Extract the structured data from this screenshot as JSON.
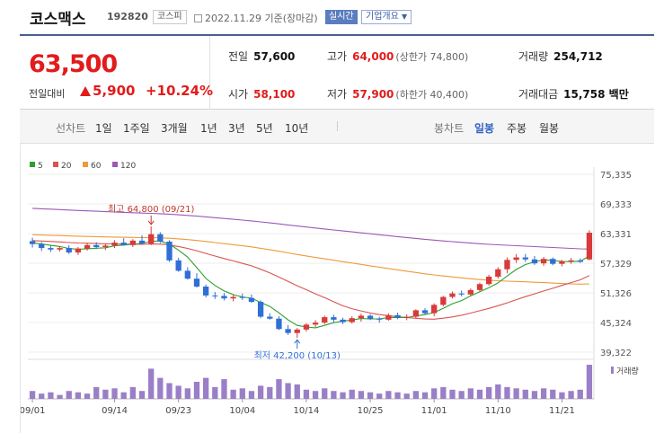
{
  "header": {
    "name": "코스맥스",
    "code": "192820",
    "market": "코스피",
    "date": "2022.11.29 기준(장마감)",
    "live": "실시간",
    "info": "기업개요"
  },
  "quote": {
    "price": "63,500",
    "change_label": "전일대비",
    "change": "5,900",
    "rate": "+10.24%"
  },
  "stats": {
    "prev_label": "전일",
    "prev": "57,600",
    "high_label": "고가",
    "high": "64,000",
    "high_limit": "(상한가 74,800)",
    "volume_label": "거래량",
    "volume": "254,712",
    "open_label": "시가",
    "open": "58,100",
    "low_label": "저가",
    "low": "57,900",
    "low_limit": "(하한가 40,400)",
    "amount_label": "거래대금",
    "amount": "15,758 백만"
  },
  "tabs": {
    "line_label": "선차트",
    "line_items": [
      "1일",
      "1주일",
      "3개월",
      "1년",
      "3년",
      "5년",
      "10년"
    ],
    "candle_label": "봉차트",
    "candle_items": [
      "일봉",
      "주봉",
      "월봉"
    ],
    "active_candle": "일봉"
  },
  "chart_data": {
    "type": "candlestick",
    "ma_legend": [
      {
        "name": "5",
        "color": "#2ca02c"
      },
      {
        "name": "20",
        "color": "#d9534f"
      },
      {
        "name": "60",
        "color": "#ee9a3a"
      },
      {
        "name": "120",
        "color": "#9b59b6"
      }
    ],
    "y_ticks": [
      "75,335",
      "69,333",
      "63,331",
      "57,329",
      "51,326",
      "45,324",
      "39,322"
    ],
    "y_range": [
      39322,
      75335
    ],
    "x_ticks": [
      "09/01",
      "09/14",
      "09/23",
      "10/04",
      "10/14",
      "10/25",
      "11/01",
      "11/10",
      "11/21"
    ],
    "x_tick_index": [
      0,
      9,
      16,
      23,
      30,
      37,
      44,
      51,
      58
    ],
    "volume_label": "거래량",
    "annot_high": "최고 64,800 (09/21)",
    "annot_low": "최저 42,200 (10/13)",
    "high_index": 13,
    "low_index": 29,
    "candles": [
      [
        61800,
        62500,
        60500,
        61200
      ],
      [
        61200,
        61600,
        59800,
        60400
      ],
      [
        60400,
        60900,
        59600,
        60100
      ],
      [
        60100,
        60800,
        59700,
        60400
      ],
      [
        60400,
        61000,
        59200,
        59500
      ],
      [
        59500,
        60600,
        59000,
        60300
      ],
      [
        60300,
        61400,
        59900,
        61000
      ],
      [
        61000,
        61600,
        60200,
        60600
      ],
      [
        60600,
        61200,
        60000,
        60900
      ],
      [
        60900,
        62000,
        60400,
        61500
      ],
      [
        61500,
        62400,
        60900,
        61000
      ],
      [
        61000,
        62200,
        60600,
        61900
      ],
      [
        61900,
        63000,
        61300,
        61300
      ],
      [
        61300,
        64800,
        61000,
        63200
      ],
      [
        63200,
        63600,
        61400,
        61700
      ],
      [
        61700,
        62000,
        57600,
        57900
      ],
      [
        57900,
        58400,
        55600,
        55800
      ],
      [
        55800,
        56500,
        54000,
        54200
      ],
      [
        54200,
        55300,
        52400,
        52600
      ],
      [
        52600,
        53000,
        50400,
        50800
      ],
      [
        50800,
        51500,
        50100,
        50700
      ],
      [
        50700,
        51300,
        49800,
        50200
      ],
      [
        50200,
        50900,
        49600,
        50500
      ],
      [
        50500,
        51200,
        49900,
        50300
      ],
      [
        50300,
        51000,
        49300,
        49500
      ],
      [
        49500,
        49800,
        46200,
        46500
      ],
      [
        46500,
        47200,
        45900,
        46100
      ],
      [
        46100,
        46600,
        43800,
        44000
      ],
      [
        44000,
        44800,
        42800,
        43200
      ],
      [
        43200,
        44200,
        42200,
        43900
      ],
      [
        43900,
        45200,
        43500,
        44900
      ],
      [
        44900,
        45800,
        44400,
        45300
      ],
      [
        45300,
        46700,
        45000,
        46400
      ],
      [
        46400,
        46900,
        45400,
        45900
      ],
      [
        45900,
        46300,
        45000,
        45400
      ],
      [
        45400,
        46600,
        45100,
        46200
      ],
      [
        46200,
        47100,
        45500,
        46700
      ],
      [
        46700,
        47000,
        45800,
        46100
      ],
      [
        46100,
        46500,
        45300,
        45900
      ],
      [
        45900,
        47200,
        45700,
        46800
      ],
      [
        46800,
        47300,
        46000,
        46300
      ],
      [
        46300,
        47000,
        45800,
        46500
      ],
      [
        46500,
        48000,
        46200,
        47800
      ],
      [
        47800,
        48200,
        46900,
        47200
      ],
      [
        47200,
        49200,
        46600,
        48900
      ],
      [
        48900,
        50700,
        48600,
        50500
      ],
      [
        50500,
        51600,
        50200,
        51200
      ],
      [
        51200,
        51800,
        50600,
        51000
      ],
      [
        51000,
        52200,
        50700,
        51900
      ],
      [
        51900,
        53400,
        51600,
        53100
      ],
      [
        53100,
        55000,
        52800,
        54600
      ],
      [
        54600,
        56500,
        54200,
        56100
      ],
      [
        56100,
        58500,
        55300,
        58000
      ],
      [
        58000,
        59200,
        57400,
        58500
      ],
      [
        58500,
        59200,
        57600,
        58100
      ],
      [
        58100,
        58800,
        57000,
        57300
      ],
      [
        57300,
        58600,
        56800,
        58200
      ],
      [
        58200,
        58500,
        56900,
        57200
      ],
      [
        57200,
        58000,
        56700,
        57700
      ],
      [
        57700,
        58400,
        57200,
        57900
      ],
      [
        57900,
        58300,
        57400,
        57600
      ],
      [
        58100,
        64000,
        57900,
        63500
      ]
    ],
    "volumes": [
      6,
      4,
      5,
      3,
      6,
      5,
      4,
      9,
      7,
      8,
      5,
      9,
      6,
      23,
      16,
      12,
      10,
      8,
      13,
      16,
      9,
      15,
      7,
      8,
      6,
      10,
      9,
      15,
      12,
      11,
      7,
      6,
      8,
      6,
      5,
      7,
      6,
      5,
      4,
      6,
      5,
      4,
      6,
      5,
      8,
      9,
      7,
      6,
      8,
      7,
      9,
      11,
      9,
      8,
      7,
      6,
      8,
      7,
      5,
      6,
      7,
      26
    ]
  }
}
